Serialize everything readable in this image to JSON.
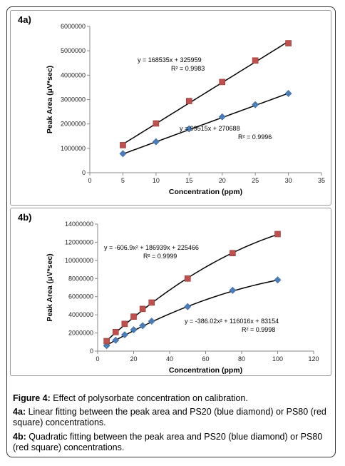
{
  "figure_caption": {
    "label": "Figure 4:",
    "text": "Effect of polysorbate concentration on calibration."
  },
  "panel_a_caption": {
    "label": "4a:",
    "text": "Linear fitting between the peak area and PS20 (blue diamond) or PS80 (red square) concentrations."
  },
  "panel_b_caption": {
    "label": "4b:",
    "text": "Quadratic fitting between the peak area and PS20 (blue diamond) or PS80 (red square) concentrations."
  },
  "colors": {
    "ps20": "#4a7ebb",
    "ps80": "#c0504d",
    "fit_line": "#000000"
  },
  "chart_data": [
    {
      "panel_label": "4a)",
      "type": "scatter",
      "xlabel": "Concentration (ppm)",
      "ylabel": "Peak Area (μV*sec)",
      "xlim": [
        0,
        35
      ],
      "ylim": [
        0,
        6000000
      ],
      "x_ticks": [
        0,
        5,
        10,
        15,
        20,
        25,
        30,
        35
      ],
      "y_ticks": [
        0,
        1000000,
        2000000,
        3000000,
        4000000,
        5000000,
        6000000
      ],
      "x_tick_labels": [
        "0",
        "5",
        "10",
        "15",
        "20",
        "25",
        "30",
        "35"
      ],
      "y_tick_labels": [
        "0",
        "1000000",
        "2000000",
        "3000000",
        "4000000",
        "5000000",
        "6000000"
      ],
      "grid": false,
      "fit": "linear",
      "series": [
        {
          "marker": "diamond",
          "color": "#4a7ebb",
          "x": [
            5,
            10,
            15,
            20,
            25,
            30
          ],
          "y": [
            780000,
            1270000,
            1800000,
            2290000,
            2790000,
            3250000
          ],
          "equation": "y = 99515x + 270688",
          "r2": "R² = 0.9996",
          "fit_coefficients": [
            0,
            99515,
            270688
          ]
        },
        {
          "marker": "square",
          "color": "#c0504d",
          "x": [
            5,
            10,
            15,
            20,
            25,
            30
          ],
          "y": [
            1130000,
            2020000,
            2940000,
            3720000,
            4600000,
            5310000
          ],
          "equation": "y = 168535x + 325959",
          "r2": "R² = 0.9983",
          "fit_coefficients": [
            0,
            168535,
            325959
          ]
        }
      ]
    },
    {
      "panel_label": "4b)",
      "type": "scatter",
      "xlabel": "Concentration (ppm)",
      "ylabel": "Peak Area (μV*sec)",
      "xlim": [
        0,
        120
      ],
      "ylim": [
        0,
        14000000
      ],
      "x_ticks": [
        0,
        20,
        40,
        60,
        80,
        100,
        120
      ],
      "y_ticks": [
        0,
        2000000,
        4000000,
        6000000,
        8000000,
        10000000,
        12000000,
        14000000
      ],
      "x_tick_labels": [
        "0",
        "20",
        "40",
        "60",
        "80",
        "100",
        "120"
      ],
      "y_tick_labels": [
        "0",
        "2000000",
        "4000000",
        "6000000",
        "8000000",
        "10000000",
        "12000000",
        "14000000"
      ],
      "grid": false,
      "fit": "quadratic",
      "series": [
        {
          "marker": "diamond",
          "color": "#4a7ebb",
          "x": [
            5,
            10,
            15,
            20,
            25,
            30,
            50,
            75,
            100
          ],
          "y": [
            600000,
            1200000,
            1800000,
            2350000,
            2800000,
            3300000,
            4900000,
            6700000,
            7850000
          ],
          "equation": "y = -386.02x² + 116016x + 83154",
          "r2": "R² = 0.9998",
          "fit_coefficients": [
            -386.02,
            116016,
            83154
          ]
        },
        {
          "marker": "square",
          "color": "#c0504d",
          "x": [
            5,
            10,
            15,
            20,
            25,
            30,
            50,
            75,
            100
          ],
          "y": [
            1100000,
            2100000,
            3000000,
            3800000,
            4650000,
            5350000,
            8000000,
            10800000,
            12900000
          ],
          "equation": "y = -606.9x² + 186939x + 225466",
          "r2": "R² = 0.9999",
          "fit_coefficients": [
            -606.9,
            186939,
            225466
          ]
        }
      ]
    }
  ]
}
